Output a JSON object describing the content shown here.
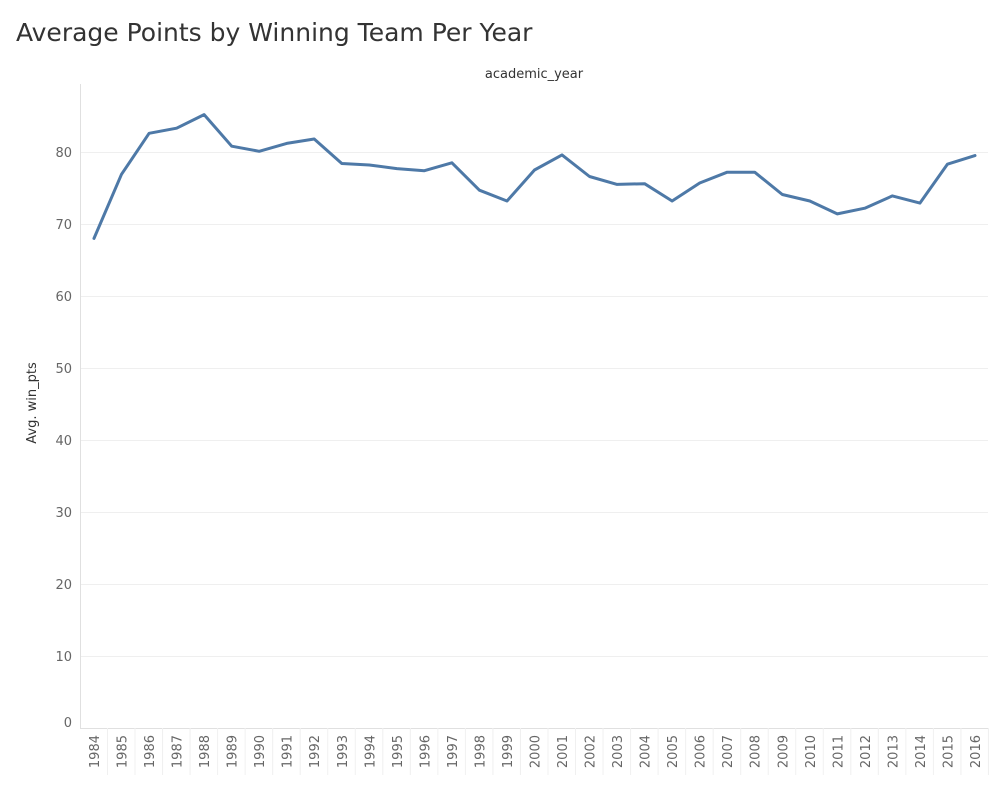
{
  "chart_data": {
    "type": "line",
    "title": "Average Points by Winning Team Per Year",
    "xlabel": "academic_year",
    "ylabel": "Avg. win_pts",
    "ylim": [
      0,
      85
    ],
    "yticks": [
      "0",
      "10",
      "20",
      "30",
      "40",
      "50",
      "60",
      "70",
      "80"
    ],
    "grid": true,
    "legend": "none",
    "line_color": "#4e79a7",
    "categories": [
      "1984",
      "1985",
      "1986",
      "1987",
      "1988",
      "1989",
      "1990",
      "1991",
      "1992",
      "1993",
      "1994",
      "1995",
      "1996",
      "1997",
      "1998",
      "1999",
      "2000",
      "2001",
      "2002",
      "2003",
      "2004",
      "2005",
      "2006",
      "2007",
      "2008",
      "2009",
      "2010",
      "2011",
      "2012",
      "2013",
      "2014",
      "2015",
      "2016"
    ],
    "series": [
      {
        "values": [
          68.0,
          76.9,
          82.6,
          83.3,
          85.2,
          80.8,
          80.1,
          81.2,
          81.8,
          78.4,
          78.2,
          77.7,
          77.4,
          78.5,
          74.7,
          73.2,
          77.5,
          79.6,
          76.6,
          75.5,
          75.6,
          73.2,
          75.7,
          77.2,
          77.2,
          74.1,
          73.2,
          71.4,
          72.2,
          73.9,
          72.9,
          78.3,
          79.5
        ]
      }
    ]
  }
}
